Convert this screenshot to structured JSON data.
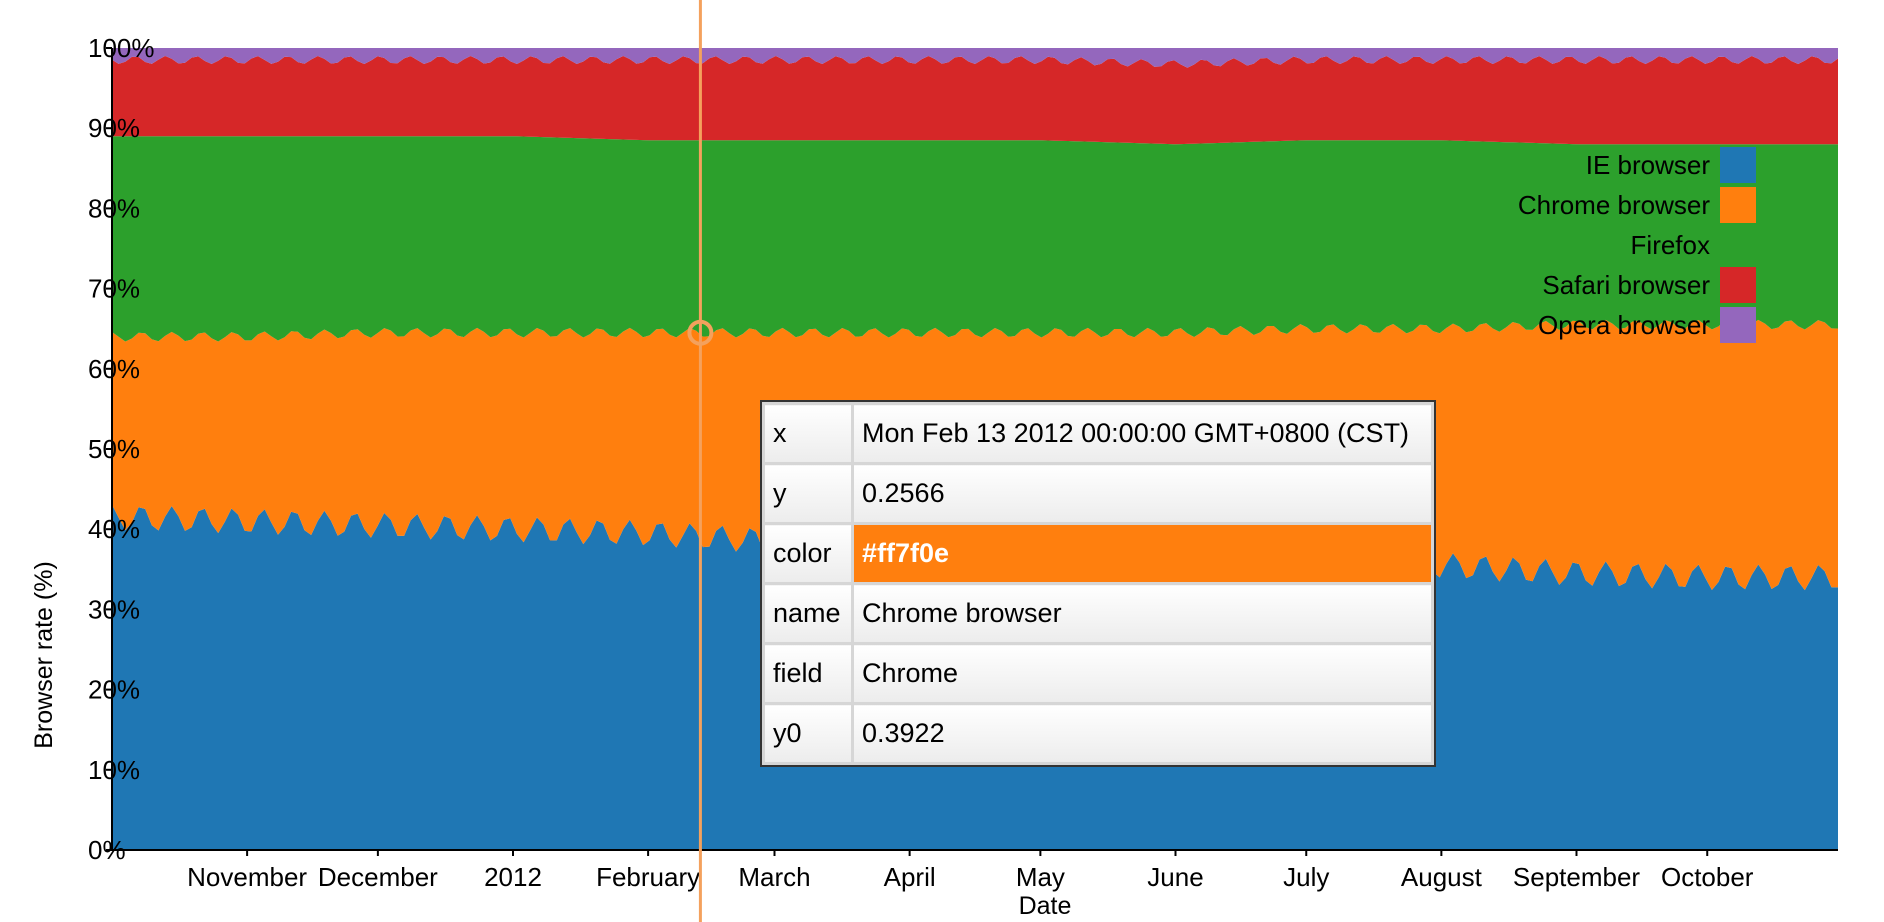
{
  "chart_data": {
    "type": "area",
    "stacked": true,
    "xlabel": "Date",
    "ylabel": "Browser rate (%)",
    "x_range": [
      "2011-10-01",
      "2012-10-31"
    ],
    "ylim": [
      0,
      100
    ],
    "y_ticks": [
      "0%",
      "10%",
      "20%",
      "30%",
      "40%",
      "50%",
      "60%",
      "70%",
      "80%",
      "90%",
      "100%"
    ],
    "x_ticks": [
      {
        "label": "November",
        "date": "2011-11-01"
      },
      {
        "label": "December",
        "date": "2011-12-01"
      },
      {
        "label": "2012",
        "date": "2012-01-01"
      },
      {
        "label": "February",
        "date": "2012-02-01"
      },
      {
        "label": "March",
        "date": "2012-03-01"
      },
      {
        "label": "April",
        "date": "2012-04-01"
      },
      {
        "label": "May",
        "date": "2012-05-01"
      },
      {
        "label": "June",
        "date": "2012-06-01"
      },
      {
        "label": "July",
        "date": "2012-07-01"
      },
      {
        "label": "August",
        "date": "2012-08-01"
      },
      {
        "label": "September",
        "date": "2012-09-01"
      },
      {
        "label": "October",
        "date": "2012-10-01"
      }
    ],
    "grid": false,
    "legend_position": "top-right",
    "x": [
      "2011-10-01",
      "2011-11-01",
      "2011-12-01",
      "2012-01-01",
      "2012-02-01",
      "2012-03-01",
      "2012-04-01",
      "2012-05-01",
      "2012-06-01",
      "2012-07-01",
      "2012-08-01",
      "2012-09-01",
      "2012-10-01",
      "2012-10-31"
    ],
    "series": [
      {
        "name": "IE browser",
        "color": "#1f77b4",
        "values": [
          41.5,
          41.0,
          40.5,
          40.0,
          39.5,
          38.5,
          37.5,
          36.5,
          36.0,
          35.5,
          35.5,
          34.5,
          34.0,
          34.0
        ]
      },
      {
        "name": "Chrome browser",
        "color": "#ff7f0e",
        "values": [
          22.5,
          23.0,
          24.0,
          24.5,
          25.0,
          26.0,
          27.0,
          28.0,
          28.5,
          29.5,
          29.5,
          31.0,
          31.5,
          31.5
        ]
      },
      {
        "name": "Firefox",
        "color": "#2ca02c",
        "values": [
          25.0,
          25.0,
          24.5,
          24.5,
          24.0,
          24.0,
          24.0,
          24.0,
          23.5,
          23.5,
          23.5,
          22.5,
          22.5,
          22.5
        ]
      },
      {
        "name": "Safari browser",
        "color": "#d62728",
        "values": [
          9.5,
          9.5,
          9.5,
          9.5,
          10.0,
          10.0,
          10.0,
          10.0,
          10.0,
          10.0,
          10.0,
          10.5,
          10.5,
          10.5
        ]
      },
      {
        "name": "Opera browser",
        "color": "#9467bd",
        "values": [
          1.5,
          1.5,
          1.5,
          1.5,
          1.5,
          1.5,
          1.5,
          1.5,
          2.0,
          1.5,
          1.5,
          1.5,
          1.5,
          1.5
        ]
      }
    ],
    "hover_date": "2012-02-13",
    "tooltip": {
      "rows": [
        {
          "key": "x",
          "value": "Mon Feb 13 2012 00:00:00 GMT+0800 (CST)"
        },
        {
          "key": "y",
          "value": "0.2566"
        },
        {
          "key": "color",
          "value": "#ff7f0e"
        },
        {
          "key": "name",
          "value": "Chrome browser"
        },
        {
          "key": "field",
          "value": "Chrome"
        },
        {
          "key": "y0",
          "value": "0.3922"
        }
      ],
      "highlight_color": "#ff7f0e"
    }
  }
}
